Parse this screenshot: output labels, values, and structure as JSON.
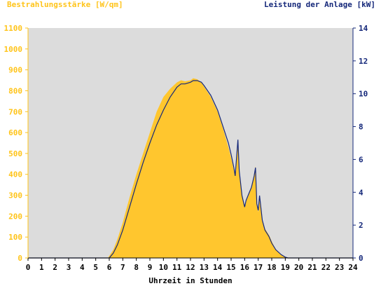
{
  "chart_data": {
    "type": "area",
    "left_axis_title": "Bestrahlungsstärke [W/qm]",
    "right_axis_title": "Leistung der Anlage [kW]",
    "xlabel": "Uhrzeit in Stunden",
    "x_ticks": [
      "0",
      "1",
      "2",
      "3",
      "4",
      "5",
      "6",
      "7",
      "8",
      "9",
      "10",
      "11",
      "12",
      "13",
      "14",
      "15",
      "16",
      "17",
      "18",
      "19",
      "20",
      "21",
      "22",
      "23",
      "24"
    ],
    "xlim": [
      0,
      24
    ],
    "ylim_left": [
      0,
      1100
    ],
    "ylim_right": [
      0,
      14
    ],
    "y_ticks_left": [
      "0",
      "100",
      "200",
      "300",
      "400",
      "500",
      "600",
      "700",
      "800",
      "900",
      "1000",
      "1100"
    ],
    "y_ticks_right": [
      "0",
      "2",
      "4",
      "6",
      "8",
      "10",
      "12",
      "14"
    ],
    "grid": false,
    "colors": {
      "irradiance": "#ffc62e",
      "power": "#15287a",
      "plot_bg": "#dcdcdc",
      "left_axis": "#ffc41a",
      "right_axis": "#15287a"
    },
    "series": [
      {
        "role": "irradiance",
        "axis": "left",
        "unit": "W/qm",
        "x": [
          0,
          5.9,
          6,
          6.3,
          6.6,
          7,
          7.5,
          8,
          8.5,
          9,
          9.5,
          10,
          10.5,
          11,
          11.3,
          11.6,
          12,
          12.2,
          12.5,
          12.8,
          13,
          13.5,
          14,
          14.4,
          14.8,
          15,
          15.2,
          15.3,
          15.5,
          15.6,
          15.8,
          16,
          16.1,
          16.3,
          16.5,
          16.7,
          16.8,
          16.9,
          17,
          17.1,
          17.3,
          17.5,
          17.8,
          18,
          18.3,
          18.7,
          19,
          19.2,
          24
        ],
        "y": [
          0,
          0,
          10,
          40,
          90,
          170,
          290,
          400,
          500,
          600,
          700,
          770,
          810,
          840,
          850,
          845,
          850,
          860,
          855,
          840,
          820,
          770,
          700,
          620,
          530,
          480,
          420,
          390,
          540,
          410,
          300,
          250,
          280,
          300,
          340,
          400,
          440,
          250,
          220,
          290,
          180,
          140,
          110,
          80,
          40,
          15,
          5,
          0,
          0
        ]
      },
      {
        "role": "power",
        "axis": "right",
        "unit": "kW",
        "x": [
          0,
          6,
          6.3,
          6.6,
          7,
          7.5,
          8,
          8.5,
          9,
          9.5,
          10,
          10.5,
          11,
          11.3,
          11.6,
          12,
          12.2,
          12.5,
          12.8,
          13,
          13.5,
          14,
          14.4,
          14.8,
          15,
          15.2,
          15.3,
          15.5,
          15.6,
          15.8,
          16,
          16.1,
          16.3,
          16.5,
          16.7,
          16.8,
          16.9,
          17,
          17.1,
          17.3,
          17.5,
          17.8,
          18,
          18.3,
          18.7,
          19,
          19.2,
          24
        ],
        "y": [
          0,
          0,
          0.3,
          0.8,
          1.7,
          3.1,
          4.5,
          5.8,
          7.0,
          8.1,
          9.0,
          9.8,
          10.4,
          10.6,
          10.6,
          10.7,
          10.8,
          10.8,
          10.7,
          10.5,
          9.9,
          9.0,
          8.0,
          7.0,
          6.3,
          5.5,
          5.0,
          7.2,
          5.3,
          3.8,
          3.1,
          3.5,
          3.9,
          4.3,
          5.0,
          5.5,
          3.3,
          2.9,
          3.8,
          2.3,
          1.7,
          1.3,
          0.9,
          0.5,
          0.2,
          0.05,
          0,
          0
        ]
      }
    ]
  }
}
